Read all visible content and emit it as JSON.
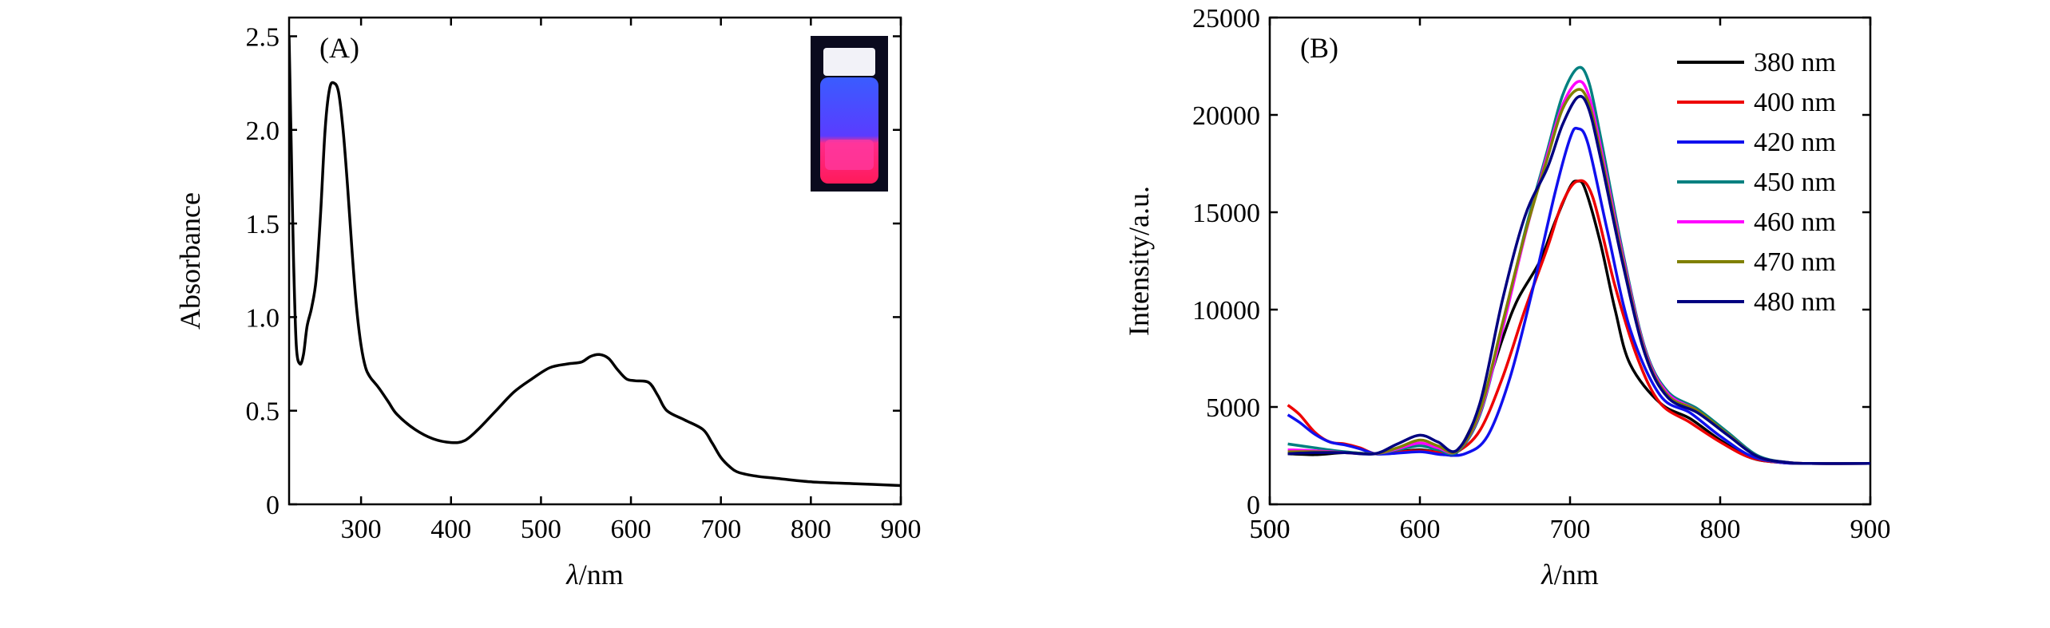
{
  "chart_data": [
    {
      "panel": "(A)",
      "type": "line",
      "xlabel_italic": "λ",
      "xlabel_rest": "/nm",
      "ylabel": "Absorbance",
      "xlim": [
        220,
        900
      ],
      "ylim": [
        0,
        2.6
      ],
      "xticks": [
        300,
        400,
        500,
        600,
        700,
        800,
        900
      ],
      "yticks": [
        0,
        0.5,
        1.0,
        1.5,
        2.0,
        2.5
      ],
      "ytick_labels": [
        "0",
        "0.5",
        "1.0",
        "1.5",
        "2.0",
        "2.5"
      ],
      "grid": false,
      "inset": "photo of a vial glowing red under UV light",
      "series": [
        {
          "color": "#000000",
          "x": [
            220,
            222,
            225,
            228,
            232,
            236,
            240,
            245,
            250,
            255,
            260,
            265,
            270,
            275,
            280,
            285,
            290,
            295,
            300,
            305,
            310,
            315,
            320,
            330,
            340,
            360,
            380,
            400,
            415,
            430,
            450,
            470,
            490,
            510,
            530,
            545,
            555,
            565,
            575,
            585,
            595,
            605,
            620,
            630,
            640,
            660,
            680,
            690,
            700,
            710,
            720,
            740,
            760,
            800,
            850,
            900
          ],
          "y": [
            2.5,
            2.0,
            1.3,
            0.85,
            0.75,
            0.8,
            0.95,
            1.05,
            1.2,
            1.55,
            2.0,
            2.22,
            2.25,
            2.2,
            2.0,
            1.7,
            1.35,
            1.05,
            0.85,
            0.73,
            0.68,
            0.65,
            0.62,
            0.55,
            0.48,
            0.4,
            0.35,
            0.33,
            0.34,
            0.4,
            0.5,
            0.6,
            0.67,
            0.73,
            0.75,
            0.76,
            0.79,
            0.8,
            0.78,
            0.72,
            0.67,
            0.66,
            0.65,
            0.58,
            0.5,
            0.45,
            0.4,
            0.33,
            0.25,
            0.2,
            0.17,
            0.15,
            0.14,
            0.12,
            0.11,
            0.1
          ]
        }
      ]
    },
    {
      "panel": "(B)",
      "type": "line",
      "xlabel_italic": "λ",
      "xlabel_rest": "/nm",
      "ylabel": "Intensity/a.u.",
      "xlim": [
        500,
        900
      ],
      "ylim": [
        0,
        25000
      ],
      "xticks": [
        500,
        600,
        700,
        800,
        900
      ],
      "yticks": [
        0,
        5000,
        10000,
        15000,
        20000,
        25000
      ],
      "grid": false,
      "legend_position": "top-right",
      "series": [
        {
          "name": "380 nm",
          "color": "#000000",
          "x": [
            512,
            530,
            550,
            570,
            585,
            600,
            615,
            625,
            640,
            655,
            665,
            680,
            690,
            700,
            705,
            710,
            720,
            730,
            740,
            760,
            780,
            800,
            820,
            840,
            860,
            900
          ],
          "y": [
            2600,
            2550,
            2650,
            2600,
            2700,
            2800,
            2650,
            2700,
            5000,
            8500,
            10500,
            12500,
            14500,
            16300,
            16600,
            16200,
            13500,
            10000,
            7200,
            5200,
            4400,
            3300,
            2400,
            2150,
            2100,
            2100
          ]
        },
        {
          "name": "400 nm",
          "color": "#ee0000",
          "x": [
            512,
            520,
            530,
            540,
            550,
            560,
            570,
            580,
            600,
            615,
            625,
            640,
            655,
            670,
            685,
            695,
            705,
            715,
            730,
            745,
            760,
            780,
            800,
            820,
            840,
            860,
            900
          ],
          "y": [
            5100,
            4600,
            3700,
            3200,
            3100,
            2900,
            2600,
            2650,
            2750,
            2650,
            2700,
            3800,
            6500,
            10000,
            13200,
            15500,
            16600,
            15800,
            11200,
            7500,
            5200,
            4200,
            3200,
            2400,
            2150,
            2100,
            2100
          ]
        },
        {
          "name": "420 nm",
          "color": "#1010ee",
          "x": [
            512,
            520,
            530,
            540,
            550,
            560,
            570,
            580,
            600,
            615,
            630,
            645,
            660,
            675,
            690,
            700,
            705,
            712,
            725,
            740,
            760,
            780,
            800,
            820,
            840,
            860,
            900
          ],
          "y": [
            4600,
            4200,
            3600,
            3200,
            3050,
            2850,
            2600,
            2600,
            2700,
            2550,
            2600,
            3500,
            6500,
            11000,
            16000,
            18800,
            19300,
            18500,
            14000,
            9000,
            5600,
            4700,
            3500,
            2500,
            2150,
            2100,
            2100
          ]
        },
        {
          "name": "450 nm",
          "color": "#008080",
          "x": [
            512,
            530,
            550,
            570,
            585,
            600,
            612,
            625,
            640,
            655,
            670,
            685,
            695,
            705,
            712,
            720,
            735,
            750,
            765,
            785,
            805,
            825,
            845,
            860,
            900
          ],
          "y": [
            3100,
            2900,
            2700,
            2600,
            2800,
            3000,
            2800,
            2700,
            4600,
            9000,
            14000,
            18200,
            21000,
            22400,
            21800,
            19000,
            13000,
            8000,
            5800,
            4900,
            3700,
            2500,
            2150,
            2100,
            2100
          ]
        },
        {
          "name": "460 nm",
          "color": "#ff00ff",
          "x": [
            512,
            530,
            550,
            570,
            585,
            600,
            612,
            625,
            640,
            655,
            670,
            685,
            695,
            705,
            712,
            720,
            735,
            750,
            765,
            785,
            805,
            825,
            845,
            860,
            900
          ],
          "y": [
            2800,
            2750,
            2650,
            2600,
            2850,
            3150,
            2900,
            2750,
            4700,
            9000,
            13800,
            18000,
            20500,
            21700,
            21100,
            18500,
            12800,
            7900,
            5700,
            4800,
            3600,
            2450,
            2150,
            2100,
            2100
          ]
        },
        {
          "name": "470 nm",
          "color": "#808000",
          "x": [
            512,
            530,
            550,
            570,
            585,
            600,
            612,
            625,
            640,
            655,
            670,
            685,
            695,
            705,
            712,
            720,
            735,
            750,
            765,
            785,
            805,
            825,
            845,
            860,
            900
          ],
          "y": [
            2700,
            2700,
            2650,
            2600,
            2900,
            3300,
            3000,
            2750,
            4800,
            9300,
            13900,
            17800,
            20300,
            21300,
            20700,
            18200,
            12600,
            7800,
            5600,
            4800,
            3600,
            2450,
            2150,
            2100,
            2100
          ]
        },
        {
          "name": "480 nm",
          "color": "#000080",
          "x": [
            512,
            530,
            550,
            570,
            585,
            600,
            612,
            625,
            640,
            655,
            670,
            685,
            695,
            705,
            712,
            720,
            735,
            750,
            765,
            785,
            805,
            825,
            845,
            860,
            900
          ],
          "y": [
            2600,
            2650,
            2650,
            2600,
            3100,
            3550,
            3200,
            2800,
            5200,
            10500,
            14800,
            17300,
            19500,
            20900,
            20400,
            17900,
            12400,
            7700,
            5500,
            4700,
            3550,
            2450,
            2150,
            2100,
            2100
          ]
        }
      ]
    }
  ]
}
